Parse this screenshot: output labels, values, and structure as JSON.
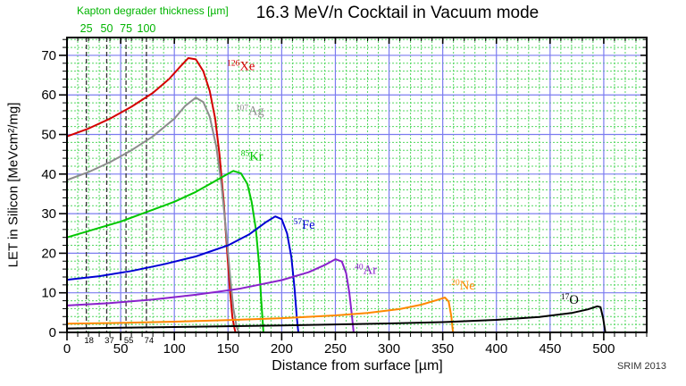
{
  "title": "16.3 MeV/n Cocktail in Vacuum mode",
  "credit": "SRIM 2013",
  "kapton": {
    "label": "Kapton degrader thickness [µm]",
    "color": "#00b400",
    "values": [
      "25",
      "50",
      "75",
      "100"
    ],
    "positions_um": [
      18,
      37,
      55,
      74
    ],
    "depth_labels": [
      "18",
      "37",
      "55",
      "74"
    ]
  },
  "chart_data": {
    "type": "line",
    "title": "16.3 MeV/n Cocktail in Vacuum mode",
    "xlabel": "Distance from surface [µm]",
    "ylabel": "LET in Silicon [MeVcm²/mg]",
    "xlim": [
      0,
      540
    ],
    "ylim": [
      0,
      74.5
    ],
    "x_major_step": 50,
    "x_minor_step": 10,
    "y_major_step": 10,
    "y_minor_step": 2,
    "x_label_max": 500,
    "y_label_max": 70,
    "grid": {
      "major_color": "#7b7bf0",
      "minor_color": "#55d862",
      "frame_color": "#000000"
    },
    "series": [
      {
        "name": "126Xe",
        "mass": "126",
        "symbol": "Xe",
        "color": "#d40000",
        "label_at": [
          149,
          66.3
        ],
        "points": [
          [
            0,
            49.5
          ],
          [
            20,
            51.5
          ],
          [
            40,
            54
          ],
          [
            60,
            57
          ],
          [
            80,
            60.5
          ],
          [
            95,
            64
          ],
          [
            105,
            67
          ],
          [
            113,
            69.3
          ],
          [
            120,
            69
          ],
          [
            127,
            66
          ],
          [
            133,
            61
          ],
          [
            138,
            54
          ],
          [
            142,
            45
          ],
          [
            146,
            33
          ],
          [
            149,
            21
          ],
          [
            152,
            10
          ],
          [
            154,
            4
          ],
          [
            156,
            1
          ],
          [
            157,
            0
          ]
        ]
      },
      {
        "name": "107Ag",
        "mass": "107",
        "symbol": "Ag",
        "color": "#8c8c8c",
        "label_at": [
          157,
          55
        ],
        "points": [
          [
            0,
            38.5
          ],
          [
            20,
            40.5
          ],
          [
            40,
            43
          ],
          [
            60,
            46
          ],
          [
            80,
            49.5
          ],
          [
            100,
            54
          ],
          [
            110,
            57.2
          ],
          [
            120,
            59.3
          ],
          [
            127,
            58.2
          ],
          [
            133,
            54.5
          ],
          [
            139,
            47
          ],
          [
            144,
            37
          ],
          [
            148,
            26
          ],
          [
            152,
            14
          ],
          [
            155,
            6
          ],
          [
            158,
            1.5
          ],
          [
            160,
            0
          ]
        ]
      },
      {
        "name": "85Kr",
        "mass": "85",
        "symbol": "Kr",
        "color": "#00c800",
        "label_at": [
          162,
          43.5
        ],
        "points": [
          [
            0,
            24
          ],
          [
            25,
            26
          ],
          [
            50,
            28
          ],
          [
            75,
            30.5
          ],
          [
            100,
            33
          ],
          [
            120,
            35.5
          ],
          [
            135,
            37.8
          ],
          [
            148,
            39.8
          ],
          [
            155,
            40.8
          ],
          [
            162,
            40.2
          ],
          [
            168,
            37.5
          ],
          [
            172,
            33
          ],
          [
            176,
            26
          ],
          [
            179,
            17
          ],
          [
            181,
            8
          ],
          [
            183,
            0
          ]
        ]
      },
      {
        "name": "57Fe",
        "mass": "57",
        "symbol": "Fe",
        "color": "#0000d4",
        "label_at": [
          211,
          26.2
        ],
        "points": [
          [
            0,
            13.3
          ],
          [
            30,
            14.2
          ],
          [
            60,
            15.5
          ],
          [
            90,
            17.2
          ],
          [
            120,
            19.2
          ],
          [
            150,
            22
          ],
          [
            170,
            24.8
          ],
          [
            185,
            27.8
          ],
          [
            194,
            29.3
          ],
          [
            200,
            28.6
          ],
          [
            205,
            25
          ],
          [
            209,
            19
          ],
          [
            212,
            11
          ],
          [
            214,
            4
          ],
          [
            215.5,
            0
          ]
        ]
      },
      {
        "name": "40Ar",
        "mass": "40",
        "symbol": "Ar",
        "color": "#8922cc",
        "label_at": [
          268,
          14.8
        ],
        "points": [
          [
            0,
            6.8
          ],
          [
            40,
            7.4
          ],
          [
            80,
            8.3
          ],
          [
            120,
            9.5
          ],
          [
            160,
            11
          ],
          [
            200,
            13.2
          ],
          [
            225,
            15.2
          ],
          [
            240,
            17
          ],
          [
            250,
            18.5
          ],
          [
            256,
            17.9
          ],
          [
            260,
            15
          ],
          [
            263,
            10
          ],
          [
            265.5,
            4
          ],
          [
            267,
            0
          ]
        ]
      },
      {
        "name": "20Ne",
        "mass": "20",
        "symbol": "Ne",
        "color": "#ff8800",
        "label_at": [
          358,
          10.8
        ],
        "points": [
          [
            0,
            2.2
          ],
          [
            50,
            2.4
          ],
          [
            100,
            2.7
          ],
          [
            150,
            3.1
          ],
          [
            200,
            3.6
          ],
          [
            250,
            4.3
          ],
          [
            280,
            4.9
          ],
          [
            310,
            5.9
          ],
          [
            330,
            7
          ],
          [
            345,
            8.2
          ],
          [
            352,
            8.8
          ],
          [
            355.5,
            7.8
          ],
          [
            358,
            4
          ],
          [
            359.5,
            0
          ]
        ]
      },
      {
        "name": "17O",
        "mass": "17",
        "symbol": "O",
        "color": "#000000",
        "label_at": [
          460,
          7.2
        ],
        "points": [
          [
            0,
            1.0
          ],
          [
            100,
            1.35
          ],
          [
            200,
            1.75
          ],
          [
            300,
            2.25
          ],
          [
            350,
            2.6
          ],
          [
            400,
            3.15
          ],
          [
            440,
            3.9
          ],
          [
            470,
            4.9
          ],
          [
            485,
            5.8
          ],
          [
            494,
            6.6
          ],
          [
            497,
            6.4
          ],
          [
            499.5,
            3.5
          ],
          [
            501.5,
            0
          ]
        ]
      }
    ]
  }
}
